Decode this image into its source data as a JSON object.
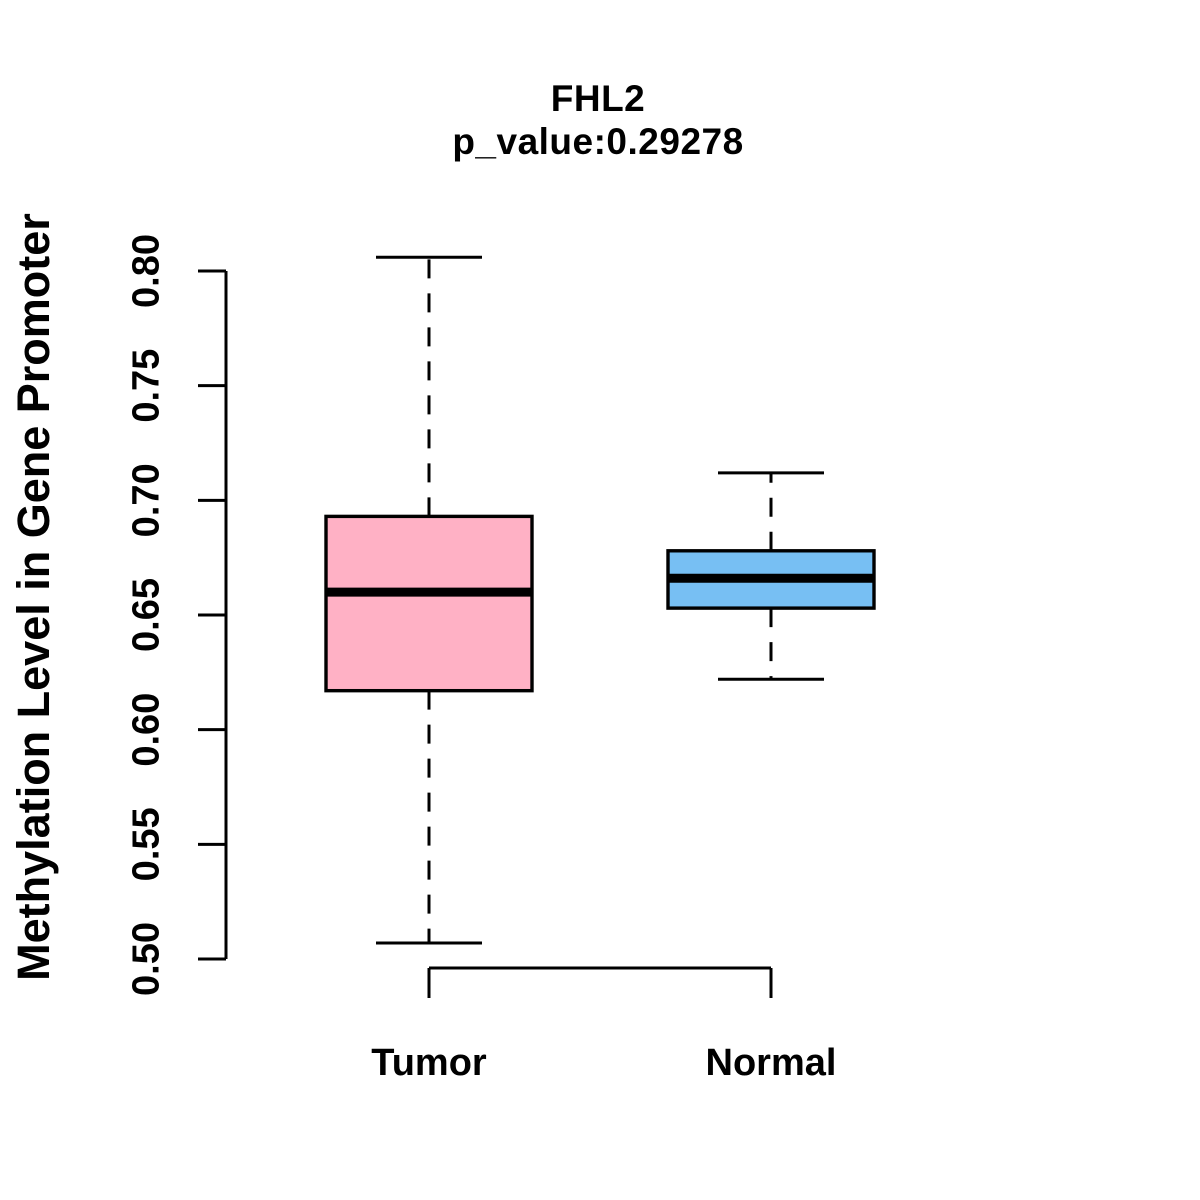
{
  "figure": {
    "background_color": "#FFFFFF"
  },
  "chart_data": {
    "type": "boxplot",
    "title": "FHL2",
    "subtitle": "p_value:0.29278",
    "ylabel": "Methylation Level in Gene Promoter",
    "xlabel": "",
    "ylim": [
      0.5,
      0.8
    ],
    "yticks": [
      0.5,
      0.55,
      0.6,
      0.65,
      0.7,
      0.75,
      0.8
    ],
    "ytick_labels": [
      "0.50",
      "0.55",
      "0.60",
      "0.65",
      "0.70",
      "0.75",
      "0.80"
    ],
    "categories": [
      "Tumor",
      "Normal"
    ],
    "grid": false,
    "legend": "none",
    "whisker_style": "dashed",
    "series": [
      {
        "name": "Tumor",
        "min": 0.507,
        "q1": 0.617,
        "median": 0.66,
        "q3": 0.693,
        "max": 0.806,
        "fill_color": "#FFB1C5"
      },
      {
        "name": "Normal",
        "min": 0.622,
        "q1": 0.653,
        "median": 0.666,
        "q3": 0.678,
        "max": 0.712,
        "fill_color": "#77BFF3"
      }
    ],
    "colors": {
      "box_border": "#000000",
      "median_line": "#000000",
      "axis": "#000000",
      "text": "#000000",
      "background": "#FFFFFF"
    }
  }
}
